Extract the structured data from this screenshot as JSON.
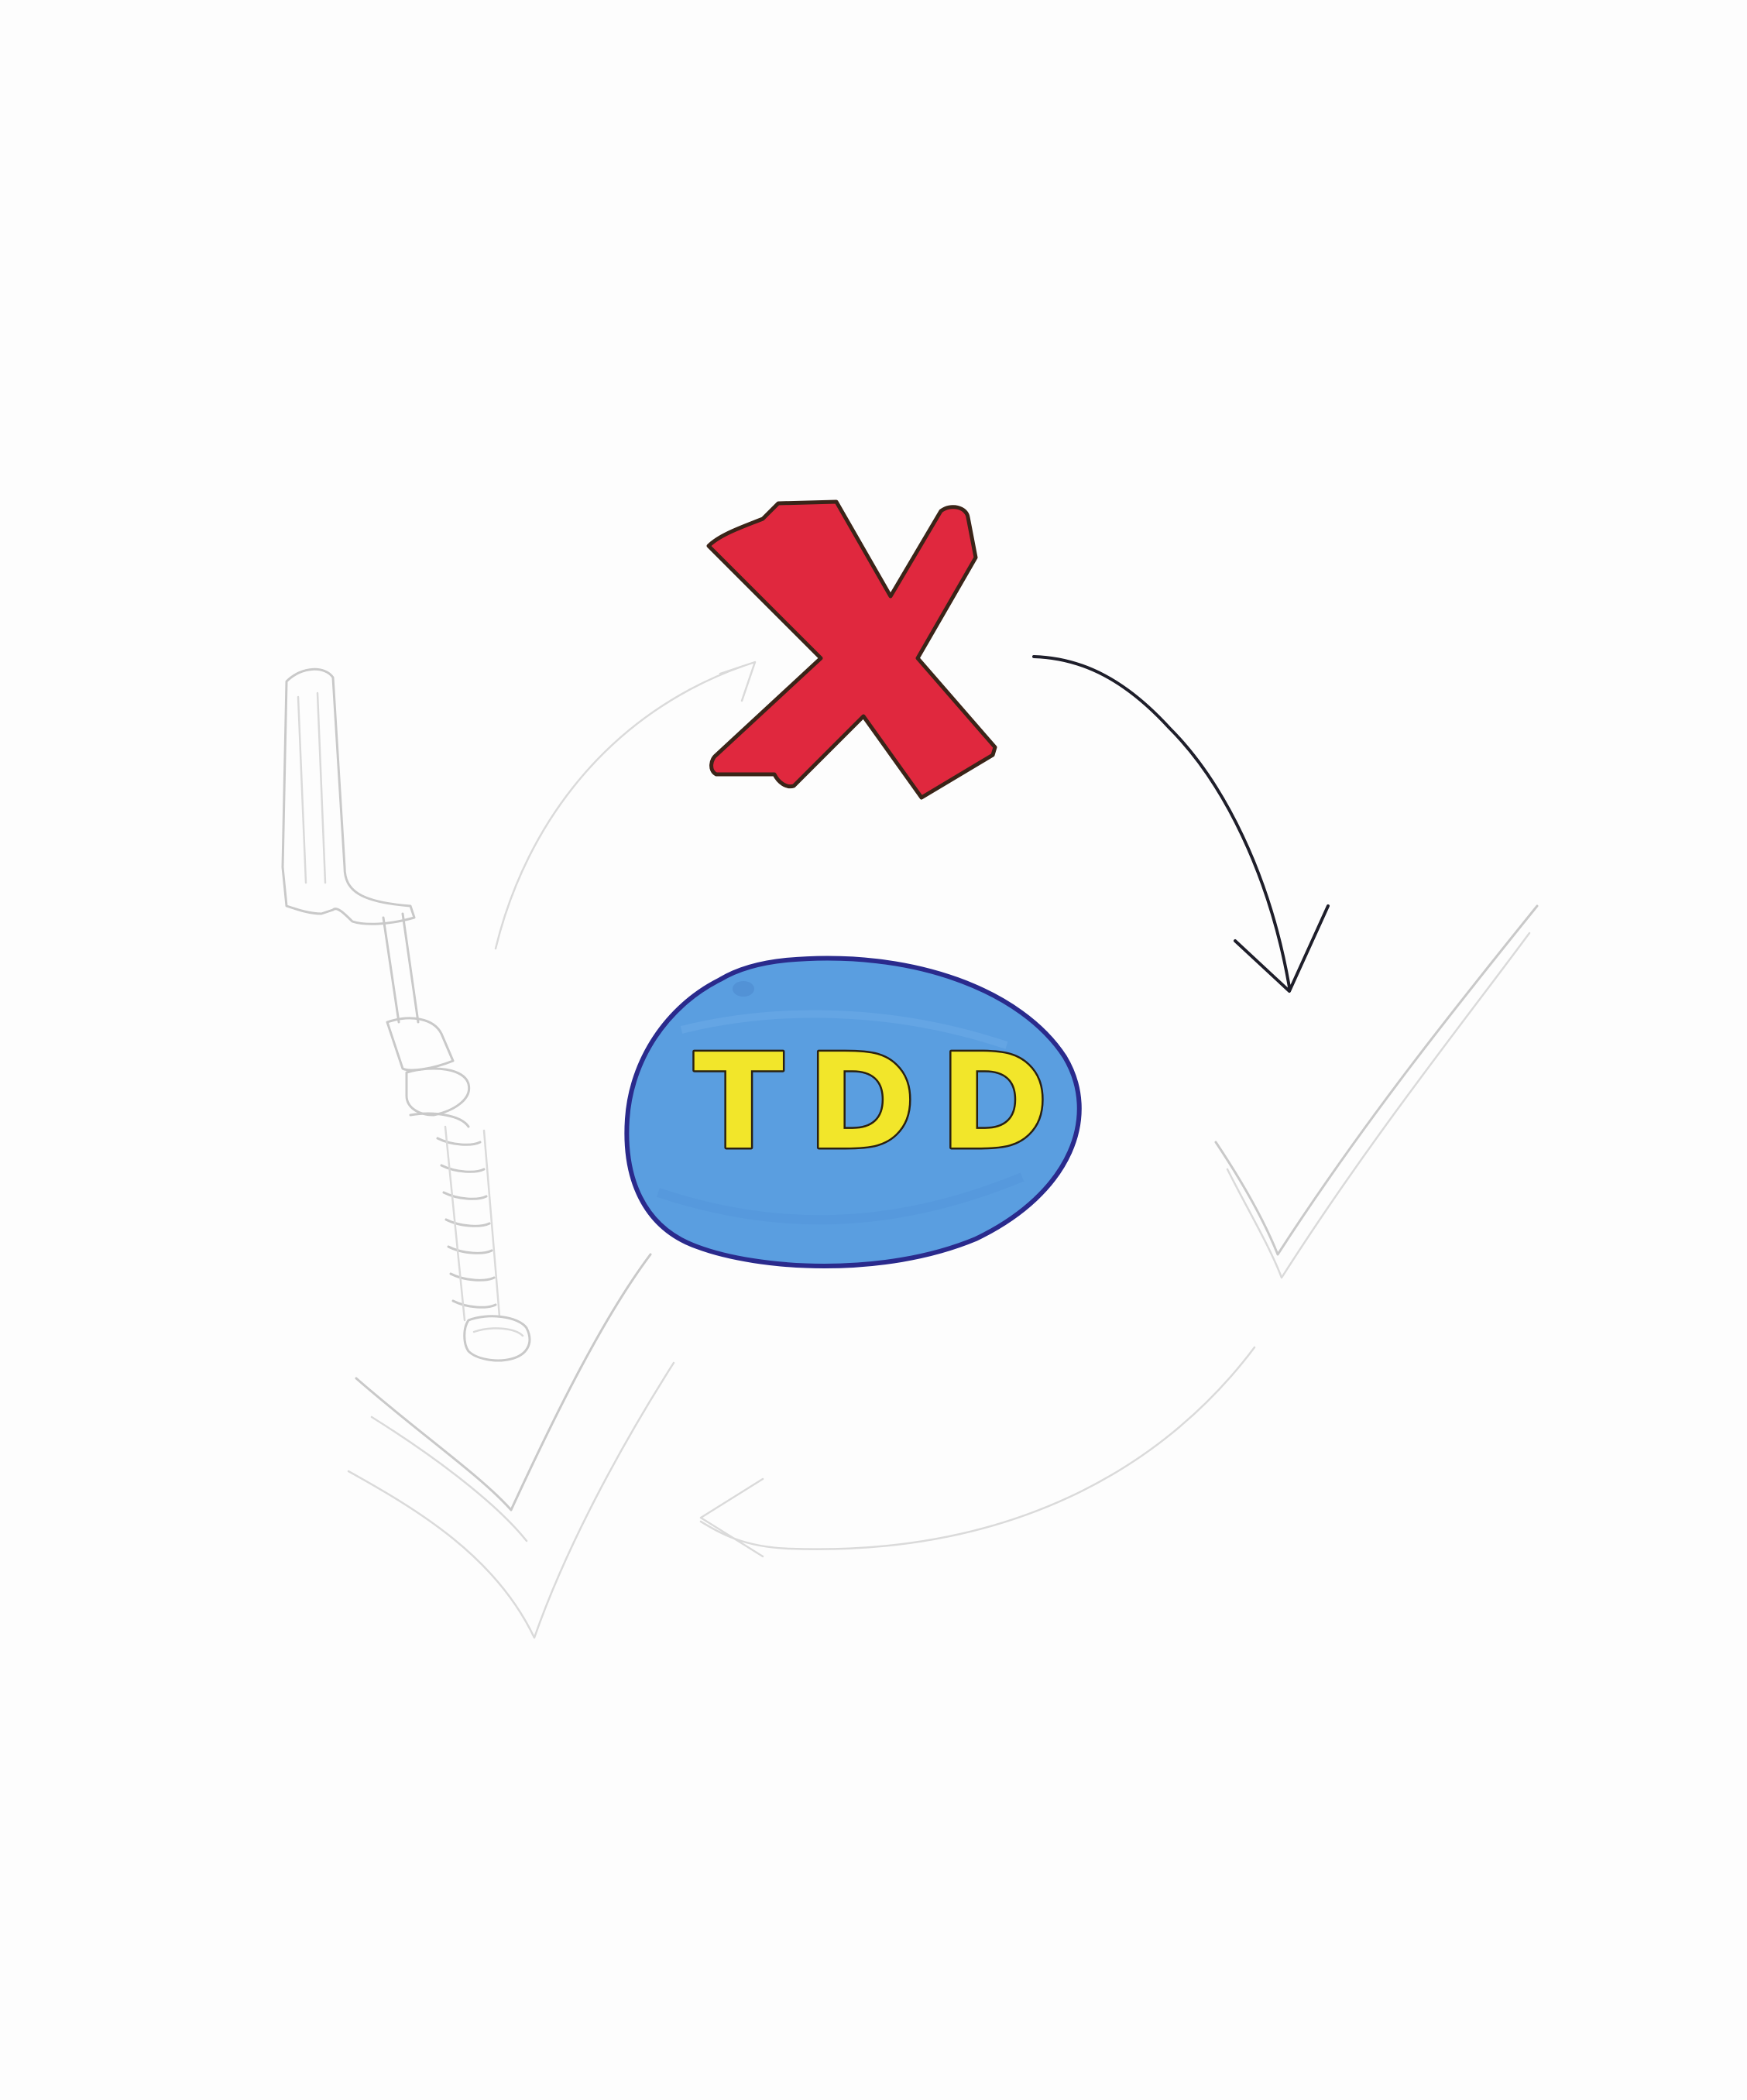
{
  "diagram": {
    "center_label": "TDD",
    "steps": [
      {
        "icon": "red-x-icon",
        "meaning": ""
      },
      {
        "icon": "checkmark-icon",
        "meaning": ""
      },
      {
        "icon": "screwdriver-icon",
        "meaning": ""
      }
    ],
    "colors": {
      "background": "#fdfdfd",
      "x_fill": "#e0283e",
      "x_outline": "#3a2418",
      "oval_fill": "#5a9ee0",
      "oval_outline": "#2a2a8c",
      "letter_fill": "#f2e62a",
      "letter_outline": "#2a2010",
      "arrow_ink": "#1e1e2a",
      "pencil": "#c9c9c9"
    }
  }
}
